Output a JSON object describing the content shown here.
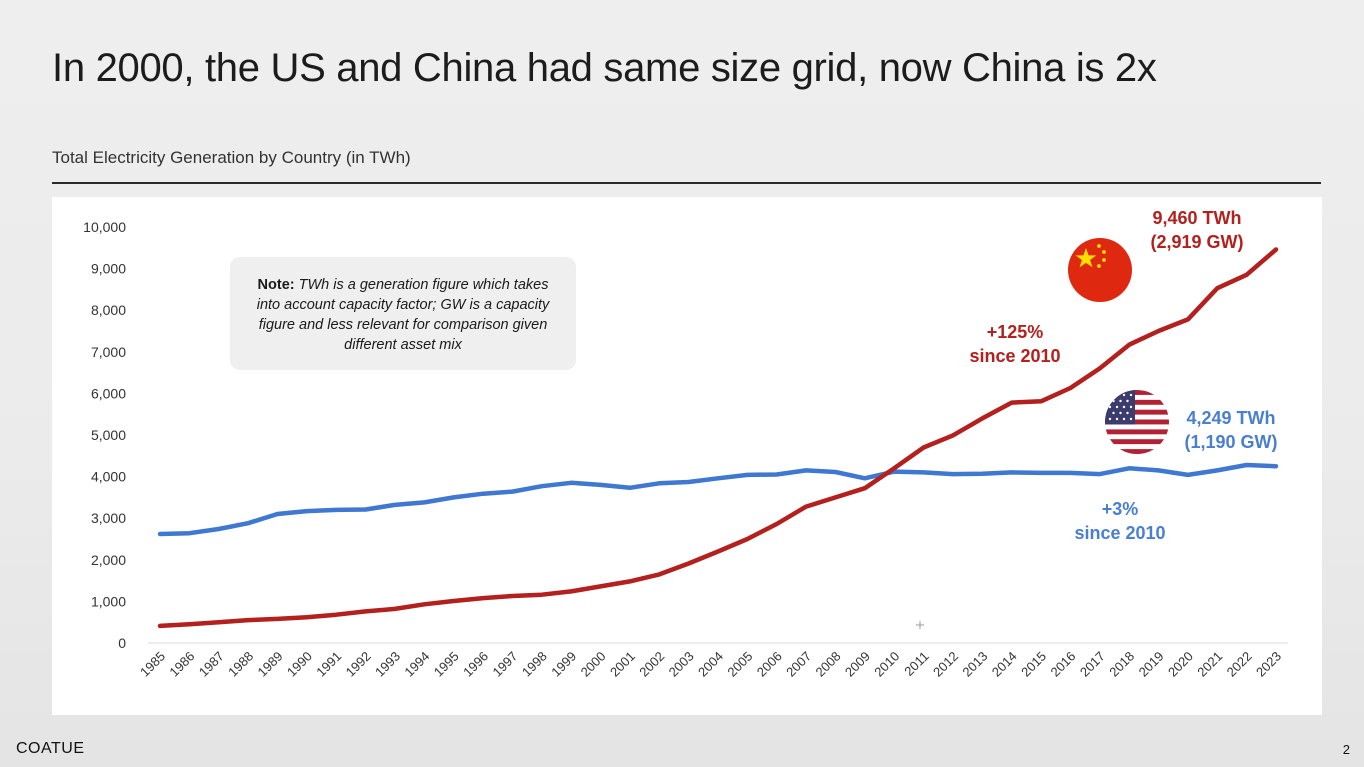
{
  "slide": {
    "title": "In 2000, the US and China had same size grid, now China is 2x",
    "brand": "COATUE",
    "page_number": "2"
  },
  "note": {
    "label": "Note:",
    "text": "TWh is a generation figure which takes into account capacity factor; GW is a capacity figure and less relevant for comparison given different asset mix"
  },
  "annotations": {
    "china_value": "9,460 TWh\n(2,919 GW)",
    "china_growth": "+125%\nsince 2010",
    "us_value": "4,249 TWh\n(1,190 GW)",
    "us_growth": "+3%\nsince 2010"
  },
  "icons": {
    "china_flag": "china-flag-icon",
    "us_flag": "us-flag-icon"
  },
  "colors": {
    "china": "#b3201d",
    "us": "#3f78d1"
  },
  "chart_data": {
    "type": "line",
    "title": "Total Electricity Generation by Country (in TWh)",
    "xlabel": "",
    "ylabel": "",
    "ylim": [
      0,
      10000
    ],
    "yticks": [
      0,
      1000,
      2000,
      3000,
      4000,
      5000,
      6000,
      7000,
      8000,
      9000,
      10000
    ],
    "ytick_labels": [
      "0",
      "1,000",
      "2,000",
      "3,000",
      "4,000",
      "5,000",
      "6,000",
      "7,000",
      "8,000",
      "9,000",
      "10,000"
    ],
    "grid": false,
    "x": [
      "1985",
      "1986",
      "1987",
      "1988",
      "1989",
      "1990",
      "1991",
      "1992",
      "1993",
      "1994",
      "1995",
      "1996",
      "1997",
      "1998",
      "1999",
      "2000",
      "2001",
      "2002",
      "2003",
      "2004",
      "2005",
      "2006",
      "2007",
      "2008",
      "2009",
      "2010",
      "2011",
      "2012",
      "2013",
      "2014",
      "2015",
      "2016",
      "2017",
      "2018",
      "2019",
      "2020",
      "2021",
      "2022",
      "2023"
    ],
    "series": [
      {
        "values": [
          410,
          450,
          500,
          550,
          580,
          620,
          680,
          760,
          820,
          930,
          1010,
          1080,
          1130,
          1160,
          1240,
          1360,
          1480,
          1650,
          1910,
          2200,
          2500,
          2860,
          3280,
          3500,
          3720,
          4200,
          4700,
          4990,
          5400,
          5780,
          5810,
          6130,
          6600,
          7170,
          7500,
          7780,
          8530,
          8850,
          9460
        ]
      },
      {
        "values": [
          2620,
          2640,
          2740,
          2880,
          3100,
          3170,
          3200,
          3210,
          3320,
          3380,
          3500,
          3590,
          3640,
          3770,
          3850,
          3800,
          3730,
          3840,
          3870,
          3960,
          4040,
          4050,
          4150,
          4110,
          3960,
          4120,
          4100,
          4060,
          4070,
          4100,
          4090,
          4090,
          4060,
          4200,
          4150,
          4040,
          4150,
          4280,
          4249
        ]
      }
    ]
  }
}
